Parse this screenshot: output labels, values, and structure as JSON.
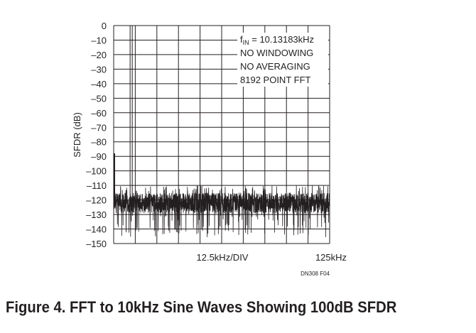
{
  "chart_data": {
    "type": "line",
    "title": "",
    "ylabel": "SFDR (dB)",
    "xlabel": "12.5kHz/DIV",
    "x_end_label": "125kHz",
    "ylim": [
      -150,
      0
    ],
    "xlim": [
      0,
      125
    ],
    "x_units": "kHz",
    "yticks": [
      "0",
      "–10",
      "–20",
      "–30",
      "–40",
      "–50",
      "–60",
      "–70",
      "–80",
      "–90",
      "–100",
      "–110",
      "–120",
      "–130",
      "–140",
      "–150"
    ],
    "grid": true,
    "annotation": {
      "fin_prefix": "f",
      "fin_sub": "IN",
      "fin_rest": " = 10.13183kHz",
      "lines": [
        "NO WINDOWING",
        "NO AVERAGING",
        "8192 POINT FFT"
      ]
    },
    "series": [
      {
        "fundamental": {
          "x": 10.13,
          "y": 0
        },
        "dc_spike": {
          "x": 0,
          "y": -88
        },
        "noise_floor_mean": -122,
        "noise_floor_min": -140,
        "noise_floor_max": -110
      }
    ]
  },
  "figure_code": "DN308 F04",
  "caption": "Figure 4. FFT to 10kHz Sine Waves Showing 100dB SFDR"
}
